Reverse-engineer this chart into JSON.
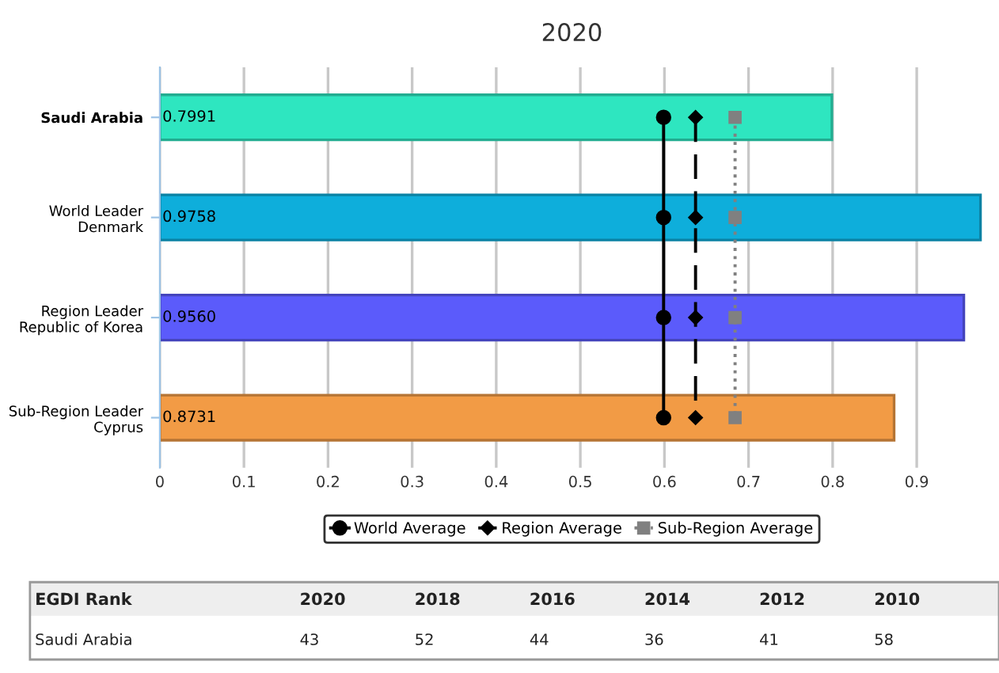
{
  "chart_data": {
    "type": "bar",
    "orientation": "horizontal",
    "title": "2020",
    "categories": [
      "Saudi Arabia",
      "World Leader\nDenmark",
      "Region Leader\nRepublic of Korea",
      "Sub-Region Leader\nCyprus"
    ],
    "series": [
      {
        "values": [
          0.7991,
          0.9758,
          0.956,
          0.8731
        ],
        "value_labels": [
          "0.7991",
          "0.9758",
          "0.9560",
          "0.8731"
        ],
        "colors": [
          "#2ee6c0",
          "#0eaedb",
          "#5b5bfb",
          "#f29b45"
        ]
      },
      {
        "type": "line",
        "name": "World Average",
        "color": "#000000",
        "marker": "circle",
        "line_style": "solid",
        "values": [
          0.599,
          0.599,
          0.599,
          0.599
        ]
      },
      {
        "type": "line",
        "name": "Region Average",
        "color": "#000000",
        "marker": "diamond",
        "line_style": "dashed",
        "values": [
          0.637,
          0.637,
          0.637,
          0.637
        ]
      },
      {
        "type": "line",
        "name": "Sub-Region Average",
        "color": "#808080",
        "marker": "square",
        "line_style": "dotted",
        "values": [
          0.684,
          0.684,
          0.684,
          0.684
        ]
      }
    ],
    "xlim": [
      0,
      0.98
    ],
    "xticks": [
      0,
      0.1,
      0.2,
      0.3,
      0.4,
      0.5,
      0.6,
      0.7,
      0.8,
      0.9
    ],
    "grid": "x",
    "legend": "bottom",
    "annotations": [
      "EGDI Rank",
      "2020",
      "2018",
      "2016",
      "2014",
      "2012",
      "2010",
      "Saudi Arabia",
      "43",
      "52",
      "44",
      "36",
      "41",
      "58"
    ]
  }
}
